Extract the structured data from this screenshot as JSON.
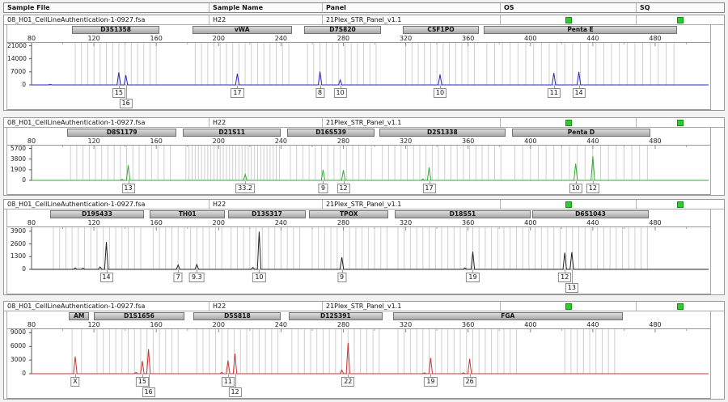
{
  "header": {
    "columns": [
      "Sample File",
      "Sample Name",
      "Panel",
      "OS",
      "SQ"
    ]
  },
  "sample": {
    "file": "08_H01_CellLineAuthentication-1-0927.fsa",
    "name": "H22",
    "panel": "21Plex_STR_Panel_v1.1"
  },
  "status": {
    "os_ok": true,
    "sq_ok": true,
    "ok_color": "#2ecc2e"
  },
  "x_axis": {
    "ticks": [
      80,
      120,
      160,
      200,
      240,
      280,
      320,
      360,
      400,
      440,
      480
    ],
    "unit": "bp",
    "range": [
      75,
      515
    ]
  },
  "colors": {
    "bins": "#cfcfcf",
    "marker_box": "#b8b8b8",
    "frame": "#999999"
  },
  "chart_data": [
    {
      "type": "line",
      "dye": "blue",
      "color": "#2a2ab8",
      "y_ticks": [
        21000,
        14000,
        7000,
        0
      ],
      "y_max": 22500,
      "markers": [
        {
          "name": "D3S1358",
          "range_bp": [
            106,
            162
          ],
          "repeat": 4
        },
        {
          "name": "vWA",
          "range_bp": [
            183,
            247
          ],
          "repeat": 4
        },
        {
          "name": "D7S820",
          "range_bp": [
            255,
            304
          ],
          "repeat": 4
        },
        {
          "name": "CSF1PO",
          "range_bp": [
            318,
            367
          ],
          "repeat": 4
        },
        {
          "name": "Penta E",
          "range_bp": [
            370,
            494
          ],
          "repeat": 5
        }
      ],
      "peaks": [
        {
          "marker": "D3S1358",
          "allele": "15",
          "bp": 136,
          "rfu": 6800,
          "label_row": 1
        },
        {
          "marker": "D3S1358",
          "allele": "16",
          "bp": 140.5,
          "rfu": 5200,
          "label_row": 2
        },
        {
          "marker": "vWA",
          "allele": "17",
          "bp": 212,
          "rfu": 6000,
          "label_row": 1
        },
        {
          "marker": "D7S820",
          "allele": "8",
          "bp": 265,
          "rfu": 7200,
          "label_row": 1
        },
        {
          "marker": "D7S820",
          "allele": "10",
          "bp": 278,
          "rfu": 2600,
          "label_row": 1
        },
        {
          "marker": "CSF1PO",
          "allele": "10",
          "bp": 342,
          "rfu": 5600,
          "label_row": 1
        },
        {
          "marker": "Penta E",
          "allele": "11",
          "bp": 415,
          "rfu": 6400,
          "label_row": 1
        },
        {
          "marker": "Penta E",
          "allele": "14",
          "bp": 431,
          "rfu": 7000,
          "label_row": 1
        }
      ],
      "minor_peaks": [
        {
          "bp": 92,
          "rfu": 350
        }
      ]
    },
    {
      "type": "line",
      "dye": "green",
      "color": "#2fae2f",
      "y_ticks": [
        5700,
        3800,
        1900,
        0
      ],
      "y_max": 6200,
      "markers": [
        {
          "name": "D8S1179",
          "range_bp": [
            103,
            173
          ],
          "repeat": 4
        },
        {
          "name": "D21S11",
          "range_bp": [
            177,
            240
          ],
          "repeat": 2
        },
        {
          "name": "D16S539",
          "range_bp": [
            244,
            300
          ],
          "repeat": 4
        },
        {
          "name": "D2S1338",
          "range_bp": [
            303,
            384
          ],
          "repeat": 4
        },
        {
          "name": "Penta D",
          "range_bp": [
            388,
            477
          ],
          "repeat": 5
        }
      ],
      "peaks": [
        {
          "marker": "D8S1179",
          "allele": "13",
          "bp": 142,
          "rfu": 2700,
          "label_row": 1
        },
        {
          "marker": "D21S11",
          "allele": "33.2",
          "bp": 217,
          "rfu": 1100,
          "label_row": 1
        },
        {
          "marker": "D16S539",
          "allele": "9",
          "bp": 267,
          "rfu": 1900,
          "label_row": 1
        },
        {
          "marker": "D16S539",
          "allele": "12",
          "bp": 280,
          "rfu": 1800,
          "label_row": 1
        },
        {
          "marker": "D2S1338",
          "allele": "17",
          "bp": 335,
          "rfu": 2300,
          "label_row": 1
        },
        {
          "marker": "Penta D",
          "allele": "10",
          "bp": 429,
          "rfu": 3000,
          "label_row": 1
        },
        {
          "marker": "Penta D",
          "allele": "12",
          "bp": 440,
          "rfu": 4300,
          "label_row": 1
        }
      ],
      "minor_peaks": [
        {
          "bp": 138,
          "rfu": 200
        },
        {
          "bp": 331,
          "rfu": 250
        }
      ]
    },
    {
      "type": "line",
      "dye": "black",
      "color": "#222222",
      "y_ticks": [
        3900,
        2600,
        1300,
        0
      ],
      "y_max": 4300,
      "markers": [
        {
          "name": "D19S433",
          "range_bp": [
            92,
            152
          ],
          "repeat": 4
        },
        {
          "name": "TH01",
          "range_bp": [
            156,
            204
          ],
          "repeat": 4
        },
        {
          "name": "D13S317",
          "range_bp": [
            206,
            256
          ],
          "repeat": 4
        },
        {
          "name": "TPOX",
          "range_bp": [
            258,
            309
          ],
          "repeat": 4
        },
        {
          "name": "D18S51",
          "range_bp": [
            313,
            400
          ],
          "repeat": 4
        },
        {
          "name": "D6S1043",
          "range_bp": [
            401,
            476
          ],
          "repeat": 4
        }
      ],
      "peaks": [
        {
          "marker": "D19S433",
          "allele": "14",
          "bp": 128,
          "rfu": 2800,
          "label_row": 1
        },
        {
          "marker": "TH01",
          "allele": "7",
          "bp": 174,
          "rfu": 450,
          "label_row": 1
        },
        {
          "marker": "TH01",
          "allele": "9.3",
          "bp": 186,
          "rfu": 500,
          "label_row": 1
        },
        {
          "marker": "D13S317",
          "allele": "10",
          "bp": 226,
          "rfu": 3850,
          "label_row": 1
        },
        {
          "marker": "TPOX",
          "allele": "9",
          "bp": 279,
          "rfu": 1250,
          "label_row": 1
        },
        {
          "marker": "D18S51",
          "allele": "19",
          "bp": 363,
          "rfu": 1800,
          "label_row": 1
        },
        {
          "marker": "D6S1043",
          "allele": "12",
          "bp": 422,
          "rfu": 1700,
          "label_row": 1
        },
        {
          "marker": "D6S1043",
          "allele": "13",
          "bp": 426.5,
          "rfu": 1750,
          "label_row": 2
        }
      ],
      "minor_peaks": [
        {
          "bp": 108,
          "rfu": 150
        },
        {
          "bp": 113,
          "rfu": 120
        },
        {
          "bp": 124,
          "rfu": 250
        },
        {
          "bp": 222,
          "rfu": 200
        },
        {
          "bp": 358,
          "rfu": 150
        }
      ]
    },
    {
      "type": "line",
      "dye": "red",
      "color": "#cc3333",
      "y_ticks": [
        9000,
        6000,
        3000,
        0
      ],
      "y_max": 9800,
      "markers": [
        {
          "name": "AM",
          "range_bp": [
            104,
            117
          ],
          "repeat": 6
        },
        {
          "name": "D1S1656",
          "range_bp": [
            120,
            178
          ],
          "repeat": 4
        },
        {
          "name": "D5S818",
          "range_bp": [
            184,
            240
          ],
          "repeat": 4
        },
        {
          "name": "D12S391",
          "range_bp": [
            245,
            305
          ],
          "repeat": 4
        },
        {
          "name": "FGA",
          "range_bp": [
            312,
            459
          ],
          "repeat": 4,
          "bin_ranges": [
            [
              313,
              392
            ],
            [
              420,
              456
            ]
          ]
        }
      ],
      "peaks": [
        {
          "marker": "AM",
          "allele": "X",
          "bp": 108,
          "rfu": 3800,
          "label_row": 1
        },
        {
          "marker": "D1S1656",
          "allele": "15",
          "bp": 151,
          "rfu": 2800,
          "label_row": 1
        },
        {
          "marker": "D1S1656",
          "allele": "16",
          "bp": 155,
          "rfu": 5400,
          "label_row": 2
        },
        {
          "marker": "D5S818",
          "allele": "11",
          "bp": 206,
          "rfu": 2900,
          "label_row": 1
        },
        {
          "marker": "D5S818",
          "allele": "12",
          "bp": 210.5,
          "rfu": 4400,
          "label_row": 2
        },
        {
          "marker": "D12S391",
          "allele": "22",
          "bp": 283,
          "rfu": 6800,
          "label_row": 1
        },
        {
          "marker": "FGA",
          "allele": "19",
          "bp": 336,
          "rfu": 3500,
          "label_row": 1
        },
        {
          "marker": "FGA",
          "allele": "26",
          "bp": 361,
          "rfu": 3300,
          "label_row": 1
        }
      ],
      "minor_peaks": [
        {
          "bp": 147,
          "rfu": 300
        },
        {
          "bp": 202,
          "rfu": 300
        },
        {
          "bp": 279,
          "rfu": 800
        },
        {
          "bp": 332,
          "rfu": 200
        },
        {
          "bp": 357,
          "rfu": 200
        }
      ]
    }
  ]
}
